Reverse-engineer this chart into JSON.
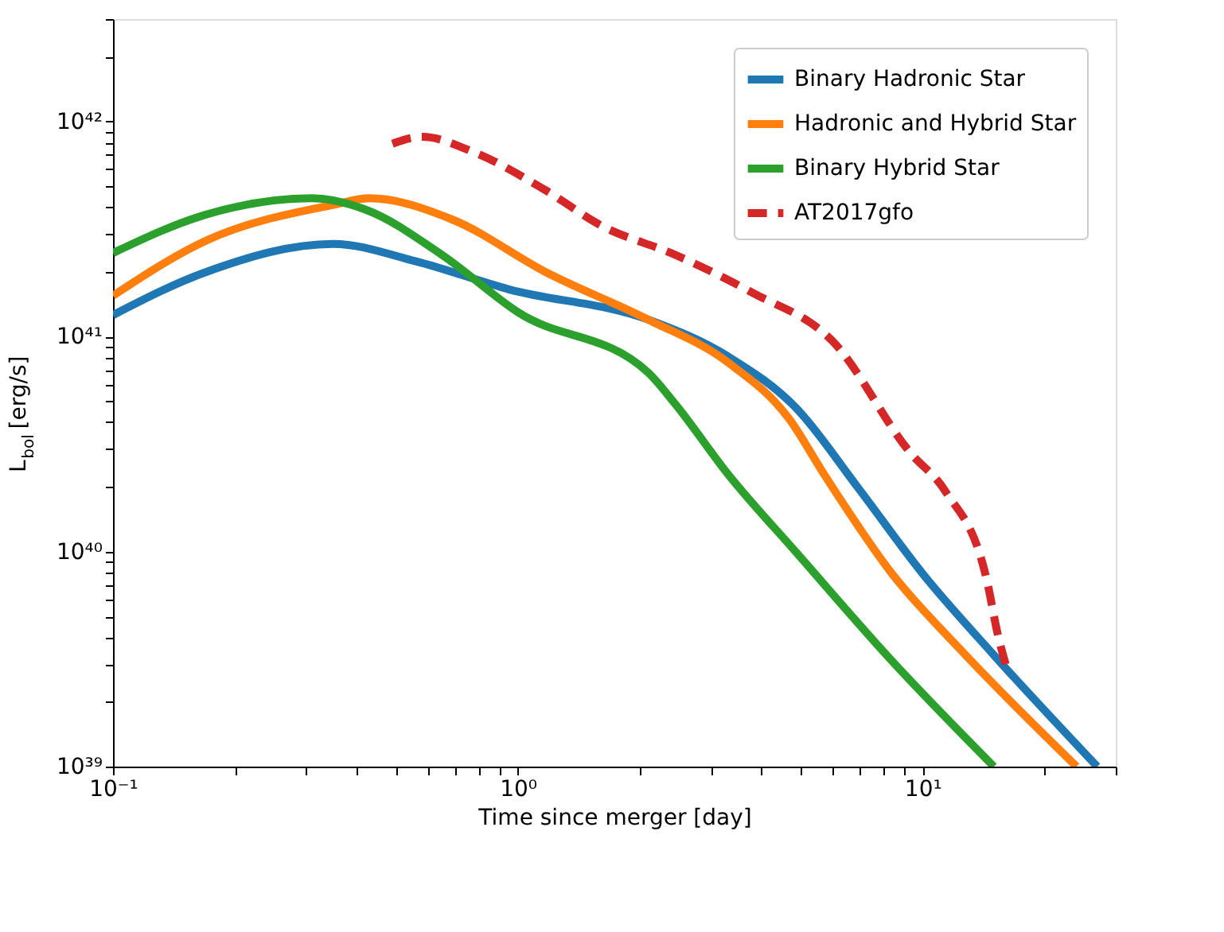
{
  "chart_data": {
    "type": "line",
    "xlabel": "Time since merger [day]",
    "ylabel": "L$_{bol}$ [erg/s]",
    "log": "xy",
    "grid": false,
    "legend": "top right",
    "marker": "none",
    "xlim": [
      0.1,
      30
    ],
    "ylim": [
      1e+39,
      3e+42
    ],
    "xticks": [
      {
        "value": 0.1,
        "label": "10⁻¹"
      },
      {
        "value": 0.2,
        "label": null
      },
      {
        "value": 0.3,
        "label": null
      },
      {
        "value": 0.4,
        "label": null
      },
      {
        "value": 0.5,
        "label": null
      },
      {
        "value": 0.6,
        "label": null
      },
      {
        "value": 0.7,
        "label": null
      },
      {
        "value": 0.8,
        "label": null
      },
      {
        "value": 0.9,
        "label": null
      },
      {
        "value": 1,
        "label": "10⁰"
      },
      {
        "value": 2,
        "label": null
      },
      {
        "value": 3,
        "label": null
      },
      {
        "value": 4,
        "label": null
      },
      {
        "value": 5,
        "label": null
      },
      {
        "value": 6,
        "label": null
      },
      {
        "value": 7,
        "label": null
      },
      {
        "value": 8,
        "label": null
      },
      {
        "value": 9,
        "label": null
      },
      {
        "value": 10,
        "label": "10¹"
      },
      {
        "value": 20,
        "label": null
      },
      {
        "value": 30,
        "label": null
      }
    ],
    "yticks": [
      {
        "value": 1e+39,
        "label": "10³⁹"
      },
      {
        "value": 2e+39,
        "label": null
      },
      {
        "value": 3e+39,
        "label": null
      },
      {
        "value": 4e+39,
        "label": null
      },
      {
        "value": 5e+39,
        "label": null
      },
      {
        "value": 6e+39,
        "label": null
      },
      {
        "value": 7e+39,
        "label": null
      },
      {
        "value": 8e+39,
        "label": null
      },
      {
        "value": 9e+39,
        "label": null
      },
      {
        "value": 1e+40,
        "label": "10⁴⁰"
      },
      {
        "value": 2e+40,
        "label": null
      },
      {
        "value": 3e+40,
        "label": null
      },
      {
        "value": 4e+40,
        "label": null
      },
      {
        "value": 5e+40,
        "label": null
      },
      {
        "value": 6e+40,
        "label": null
      },
      {
        "value": 7e+40,
        "label": null
      },
      {
        "value": 8e+40,
        "label": null
      },
      {
        "value": 9e+40,
        "label": null
      },
      {
        "value": 1e+41,
        "label": "10⁴¹"
      },
      {
        "value": 2e+41,
        "label": null
      },
      {
        "value": 3e+41,
        "label": null
      },
      {
        "value": 4e+41,
        "label": null
      },
      {
        "value": 5e+41,
        "label": null
      },
      {
        "value": 6e+41,
        "label": null
      },
      {
        "value": 7e+41,
        "label": null
      },
      {
        "value": 8e+41,
        "label": null
      },
      {
        "value": 9e+41,
        "label": null
      },
      {
        "value": 1e+42,
        "label": "10⁴²"
      },
      {
        "value": 2e+42,
        "label": null
      },
      {
        "value": 3e+42,
        "label": null
      }
    ],
    "series": [
      {
        "name": "Binary Hadronic Star",
        "color": "#1f77b4",
        "line_style": "solid",
        "x": [
          0.1,
          0.17,
          0.35,
          0.56,
          0.95,
          2.1,
          3.3,
          4.9,
          6.9,
          10,
          15,
          27
        ],
        "values": [
          1.26e+41,
          2e+41,
          2.7e+41,
          2.24e+41,
          1.66e+41,
          1.2e+41,
          8.1e+40,
          4.6e+40,
          2e+40,
          7.9e+39,
          3.3e+39,
          1e+39
        ]
      },
      {
        "name": "Hadronic and Hybrid Star",
        "color": "#ff7f0e",
        "line_style": "solid",
        "x": [
          0.1,
          0.17,
          0.35,
          0.43,
          0.69,
          1.17,
          2.1,
          3.3,
          4.7,
          5.7,
          8.4,
          12.4,
          24
        ],
        "values": [
          1.55e+41,
          2.8e+41,
          4.1e+41,
          4.4e+41,
          3.5e+41,
          2e+41,
          1.2e+41,
          7.6e+40,
          4.1e+40,
          2.3e+40,
          7.9e+39,
          3.5e+39,
          1e+39
        ]
      },
      {
        "name": "Binary Hybrid Star",
        "color": "#2ca02c",
        "line_style": "solid",
        "x": [
          0.1,
          0.17,
          0.31,
          0.42,
          0.65,
          1.0,
          2.1,
          2.44,
          3.3,
          4.9,
          8.4,
          15
        ],
        "values": [
          2.45e+41,
          3.7e+41,
          4.4e+41,
          3.9e+41,
          2.4e+41,
          1.3e+41,
          6.8e+40,
          4.9e+40,
          2.3e+40,
          9.8e+39,
          3.1e+39,
          1e+39
        ]
      },
      {
        "name": "AT2017gfo",
        "color": "#d62728",
        "line_style": "dashed",
        "x": [
          0.49,
          0.58,
          0.78,
          1.17,
          1.6,
          2.45,
          3.8,
          6.0,
          9.3,
          11.4,
          14.4,
          15.3,
          16.2
        ],
        "values": [
          7.9e+41,
          8.5e+41,
          7.2e+41,
          4.8e+41,
          3.3e+41,
          2.4e+41,
          1.6e+41,
          9.5e+40,
          2.9e+40,
          1.9e+40,
          7.4e+39,
          4.2e+39,
          2.8e+39
        ]
      }
    ]
  }
}
